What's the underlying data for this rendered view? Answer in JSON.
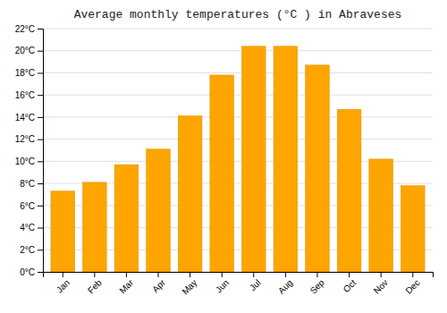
{
  "chart_data": {
    "type": "bar",
    "title": "Average monthly temperatures (°C ) in Abraveses",
    "categories": [
      "Jan",
      "Feb",
      "Mar",
      "Apr",
      "May",
      "Jun",
      "Jul",
      "Aug",
      "Sep",
      "Oct",
      "Nov",
      "Dec"
    ],
    "values": [
      7.3,
      8.1,
      9.7,
      11.1,
      14.1,
      17.8,
      20.4,
      20.4,
      18.7,
      14.7,
      10.2,
      7.8
    ],
    "color": "#FFA500",
    "ylim": [
      0,
      22
    ],
    "yticks": [
      {
        "value": 0,
        "label": "0°C"
      },
      {
        "value": 2,
        "label": "2°C"
      },
      {
        "value": 4,
        "label": "4°C"
      },
      {
        "value": 6,
        "label": "6°C"
      },
      {
        "value": 8,
        "label": "8°C"
      },
      {
        "value": 10,
        "label": "10°C"
      },
      {
        "value": 12,
        "label": "12°C"
      },
      {
        "value": 14,
        "label": "14°C"
      },
      {
        "value": 16,
        "label": "16°C"
      },
      {
        "value": 18,
        "label": "18°C"
      },
      {
        "value": 20,
        "label": "20°C"
      },
      {
        "value": 22,
        "label": "22°C"
      }
    ],
    "grid": true
  }
}
